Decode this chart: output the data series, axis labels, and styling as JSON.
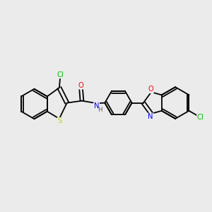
{
  "background_color": "#ebebeb",
  "bond_color": "#000000",
  "atom_colors": {
    "Cl": "#00bb00",
    "S": "#cccc00",
    "N": "#0000ff",
    "O": "#ff0000",
    "C": "#000000",
    "H": "#555555"
  },
  "figsize": [
    3.0,
    3.0
  ],
  "dpi": 100,
  "lw": 1.3,
  "fs": 7.2
}
